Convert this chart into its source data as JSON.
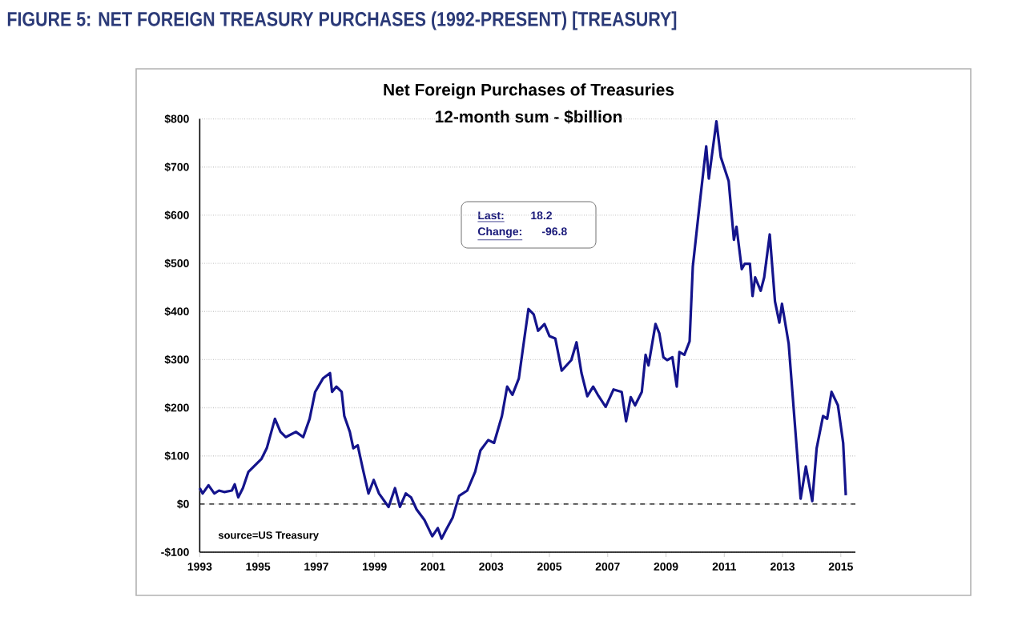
{
  "chart_data": {
    "type": "line",
    "title": "Net Foreign Purchases of Treasuries",
    "subtitle": "12-month sum - $billion",
    "annotations": [
      "FIGURE 5: NET FOREIGN TREASURY PURCHASES (1992-PRESENT) [TREASURY]",
      "Last:",
      "18.2",
      "Change:",
      "-96.8",
      "source=US Treasury"
    ],
    "x": [
      1993.0,
      1993.1,
      1993.3,
      1993.5,
      1993.66,
      1993.84,
      1994.1,
      1994.2,
      1994.32,
      1994.48,
      1994.67,
      1995.12,
      1995.3,
      1995.58,
      1995.77,
      1995.95,
      1996.3,
      1996.55,
      1996.77,
      1996.96,
      1997.23,
      1997.47,
      1997.54,
      1997.69,
      1997.87,
      1997.96,
      1998.15,
      1998.27,
      1998.42,
      1998.6,
      1998.79,
      1998.97,
      1999.15,
      1999.48,
      1999.7,
      1999.87,
      2000.07,
      2000.25,
      2000.44,
      2000.71,
      2000.98,
      2001.17,
      2001.3,
      2001.44,
      2001.68,
      2001.9,
      2002.18,
      2002.45,
      2002.63,
      2002.9,
      2003.1,
      2003.37,
      2003.55,
      2003.73,
      2003.95,
      2004.1,
      2004.28,
      2004.46,
      2004.61,
      2004.83,
      2005.0,
      2005.2,
      2005.42,
      2005.75,
      2005.93,
      2006.1,
      2006.3,
      2006.5,
      2006.66,
      2006.93,
      2007.2,
      2007.48,
      2007.63,
      2007.79,
      2007.94,
      2008.17,
      2008.3,
      2008.4,
      2008.64,
      2008.77,
      2008.91,
      2009.04,
      2009.22,
      2009.37,
      2009.46,
      2009.63,
      2009.81,
      2009.92,
      2010.14,
      2010.38,
      2010.47,
      2010.73,
      2010.88,
      2011.15,
      2011.33,
      2011.42,
      2011.6,
      2011.7,
      2011.88,
      2011.97,
      2012.06,
      2012.25,
      2012.37,
      2012.56,
      2012.74,
      2012.89,
      2012.98,
      2013.21,
      2013.62,
      2013.8,
      2014.02,
      2014.17,
      2014.39,
      2014.53,
      2014.68,
      2014.9,
      2015.08,
      2015.17
    ],
    "series": [
      {
        "color": "#14148c",
        "values": [
          33,
          22,
          39,
          22,
          28,
          25,
          28,
          41,
          14,
          33,
          67,
          94,
          116,
          177,
          150,
          139,
          150,
          139,
          177,
          233,
          261,
          272,
          233,
          244,
          233,
          183,
          150,
          116,
          122,
          72,
          22,
          50,
          22,
          -6,
          33,
          -6,
          22,
          14,
          -11,
          -33,
          -67,
          -50,
          -72,
          -55,
          -28,
          17,
          28,
          67,
          111,
          133,
          127,
          183,
          244,
          227,
          261,
          327,
          405,
          394,
          360,
          374,
          349,
          344,
          277,
          299,
          336,
          272,
          224,
          244,
          227,
          202,
          238,
          233,
          172,
          222,
          205,
          233,
          310,
          288,
          374,
          355,
          305,
          299,
          305,
          244,
          316,
          310,
          338,
          493,
          615,
          743,
          676,
          795,
          721,
          671,
          549,
          576,
          488,
          499,
          499,
          432,
          471,
          443,
          471,
          560,
          421,
          377,
          416,
          333,
          11,
          78,
          6,
          116,
          183,
          177,
          233,
          205,
          127,
          18.2
        ]
      }
    ],
    "xlim": [
      1993,
      2015.5
    ],
    "ylim": [
      -100,
      800
    ],
    "xticks": [
      1993,
      1995,
      1997,
      1999,
      2001,
      2003,
      2005,
      2007,
      2009,
      2011,
      2013,
      2015
    ],
    "yticks": [
      {
        "value": -100,
        "label": "-$100"
      },
      {
        "value": 0,
        "label": "$0"
      },
      {
        "value": 100,
        "label": "$100"
      },
      {
        "value": 200,
        "label": "$200"
      },
      {
        "value": 300,
        "label": "$300"
      },
      {
        "value": 400,
        "label": "$400"
      },
      {
        "value": 500,
        "label": "$500"
      },
      {
        "value": 600,
        "label": "$600"
      },
      {
        "value": 700,
        "label": "$700"
      },
      {
        "value": 800,
        "label": "$800"
      }
    ],
    "grid": "y",
    "ref_lines": [
      {
        "axis": "y",
        "value": 0,
        "line_style": "dashed",
        "color": "#000000"
      }
    ]
  }
}
